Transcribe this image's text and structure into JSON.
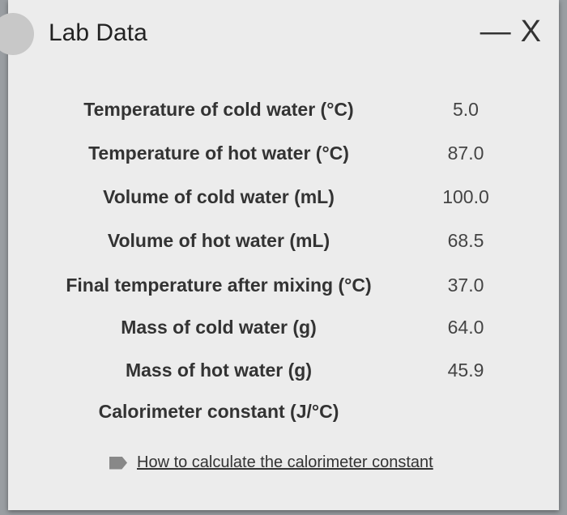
{
  "header": {
    "title": "Lab Data",
    "controls": [
      "—",
      "X"
    ]
  },
  "table": {
    "rows": [
      {
        "label": "Temperature of cold water (°C)",
        "value": "5.0"
      },
      {
        "label": "Temperature of hot water (°C)",
        "value": "87.0"
      },
      {
        "label": "Volume of cold water (mL)",
        "value": "100.0"
      },
      {
        "label": "Volume of hot water (mL)",
        "value": "68.5"
      },
      {
        "label": "Final temperature after mixing (°C)",
        "value": "37.0"
      },
      {
        "label": "Mass of cold water (g)",
        "value": "64.0"
      },
      {
        "label": "Mass of hot water (g)",
        "value": "45.9"
      },
      {
        "label": "Calorimeter constant (J/°C)"
      }
    ]
  },
  "link": {
    "text": "How to calculate the calorimeter constant"
  }
}
